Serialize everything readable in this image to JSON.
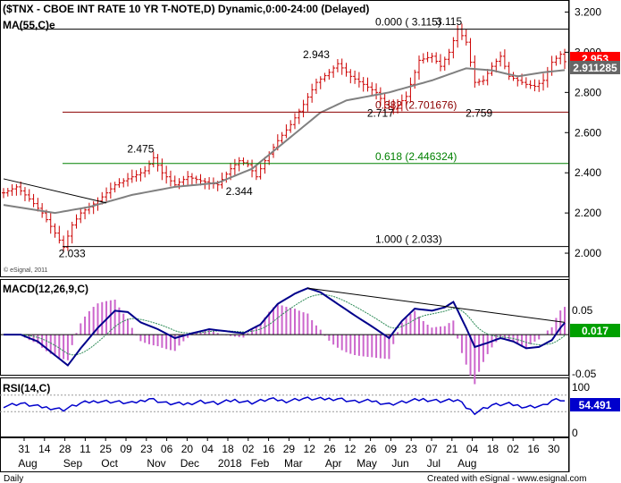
{
  "colors": {
    "price": "#cc0000",
    "ma": "#808080",
    "fib_red": "#8b0000",
    "fib_green": "#008000",
    "macd": "#00008b",
    "signal": "#2e8b57",
    "histogram": "#cc66cc",
    "rsi": "#0000cc",
    "last_price_box": "#ff0000",
    "ma_box": "#666666",
    "macd_box": "#00a000",
    "rsi_box": "#0000cc"
  },
  "chart_data": [
    {
      "type": "line",
      "panel": "price",
      "title": "($TNX - CBOE INT RATE 10 YR T-NOTE,D) Dynamic,0:00-24:00 (Delayed)",
      "ma_label": "MA(55,C)e",
      "watermark": "© eSignal, 2011",
      "ylim": [
        1.88,
        3.26
      ],
      "yticks": [
        "2.000",
        "2.200",
        "2.400",
        "2.600",
        "2.800",
        "3.000",
        "3.200"
      ],
      "last_price": "2.953",
      "ma_value": "2.911285",
      "price_waypoints": [
        [
          0,
          2.3
        ],
        [
          3,
          2.33
        ],
        [
          6,
          2.27
        ],
        [
          9,
          2.2
        ],
        [
          12,
          2.1
        ],
        [
          14,
          2.03
        ],
        [
          16,
          2.14
        ],
        [
          18,
          2.2
        ],
        [
          22,
          2.26
        ],
        [
          26,
          2.34
        ],
        [
          30,
          2.38
        ],
        [
          33,
          2.41
        ],
        [
          35,
          2.475
        ],
        [
          37,
          2.4
        ],
        [
          40,
          2.34
        ],
        [
          43,
          2.38
        ],
        [
          46,
          2.36
        ],
        [
          50,
          2.34
        ],
        [
          53,
          2.42
        ],
        [
          55,
          2.46
        ],
        [
          57,
          2.44
        ],
        [
          59,
          2.38
        ],
        [
          61,
          2.46
        ],
        [
          64,
          2.56
        ],
        [
          67,
          2.64
        ],
        [
          70,
          2.74
        ],
        [
          73,
          2.85
        ],
        [
          76,
          2.9
        ],
        [
          78,
          2.943
        ],
        [
          81,
          2.88
        ],
        [
          84,
          2.84
        ],
        [
          87,
          2.8
        ],
        [
          89,
          2.74
        ],
        [
          91,
          2.717
        ],
        [
          94,
          2.78
        ],
        [
          97,
          2.96
        ],
        [
          100,
          2.98
        ],
        [
          102,
          2.93
        ],
        [
          104,
          3.0
        ],
        [
          106,
          3.115
        ],
        [
          108,
          3.05
        ],
        [
          110,
          2.85
        ],
        [
          112,
          2.86
        ],
        [
          114,
          2.93
        ],
        [
          116,
          2.98
        ],
        [
          118,
          2.88
        ],
        [
          120,
          2.86
        ],
        [
          122,
          2.84
        ],
        [
          124,
          2.83
        ],
        [
          126,
          2.86
        ],
        [
          128,
          2.95
        ],
        [
          130,
          2.99
        ],
        [
          131,
          2.953
        ]
      ],
      "ma_waypoints": [
        [
          0,
          2.24
        ],
        [
          12,
          2.2
        ],
        [
          20,
          2.23
        ],
        [
          30,
          2.29
        ],
        [
          40,
          2.33
        ],
        [
          50,
          2.35
        ],
        [
          58,
          2.42
        ],
        [
          66,
          2.56
        ],
        [
          74,
          2.7
        ],
        [
          80,
          2.76
        ],
        [
          90,
          2.8
        ],
        [
          100,
          2.86
        ],
        [
          108,
          2.92
        ],
        [
          114,
          2.91
        ],
        [
          120,
          2.88
        ],
        [
          126,
          2.9
        ],
        [
          131,
          2.911
        ]
      ],
      "fib_levels": [
        {
          "label": "0.000 ( 3.115)",
          "value": 3.115,
          "color": "#000000"
        },
        {
          "label": "0.382 (2.701676)",
          "value": 2.701676,
          "color": "#8b0000"
        },
        {
          "label": "0.618 (2.446324)",
          "value": 2.446324,
          "color": "#008000"
        },
        {
          "label": "1.000 ( 2.033)",
          "value": 2.033,
          "color": "#000000"
        }
      ],
      "annotations": [
        {
          "text": "3.115",
          "x": 104,
          "y": 3.135
        },
        {
          "text": "2.943",
          "x": 73,
          "y": 2.97
        },
        {
          "text": "2.717",
          "x": 88,
          "y": 2.68
        },
        {
          "text": "2.759",
          "x": 111,
          "y": 2.68
        },
        {
          "text": "2.475",
          "x": 32,
          "y": 2.5
        },
        {
          "text": "2.344",
          "x": 55,
          "y": 2.29
        },
        {
          "text": "2.033",
          "x": 16,
          "y": 1.98
        }
      ],
      "trendline": [
        [
          0,
          2.37
        ],
        [
          24,
          2.25
        ]
      ]
    },
    {
      "type": "line",
      "panel": "macd",
      "title": "MACD(12,26,9,C)",
      "ylim": [
        -0.06,
        0.08
      ],
      "yticks": [
        "0.05",
        "-0.05"
      ],
      "last_value": "0.017",
      "macd_waypoints": [
        [
          0,
          0.0
        ],
        [
          4,
          0.0
        ],
        [
          8,
          -0.01
        ],
        [
          12,
          -0.03
        ],
        [
          15,
          -0.045
        ],
        [
          18,
          -0.02
        ],
        [
          22,
          0.01
        ],
        [
          26,
          0.035
        ],
        [
          29,
          0.033
        ],
        [
          32,
          0.018
        ],
        [
          36,
          0.008
        ],
        [
          40,
          -0.005
        ],
        [
          44,
          0.002
        ],
        [
          48,
          0.008
        ],
        [
          52,
          0.005
        ],
        [
          56,
          0.002
        ],
        [
          60,
          0.015
        ],
        [
          64,
          0.045
        ],
        [
          68,
          0.06
        ],
        [
          71,
          0.068
        ],
        [
          74,
          0.062
        ],
        [
          78,
          0.045
        ],
        [
          82,
          0.028
        ],
        [
          86,
          0.012
        ],
        [
          90,
          -0.005
        ],
        [
          93,
          0.02
        ],
        [
          96,
          0.038
        ],
        [
          100,
          0.035
        ],
        [
          103,
          0.04
        ],
        [
          105,
          0.048
        ],
        [
          108,
          0.01
        ],
        [
          110,
          -0.018
        ],
        [
          113,
          -0.012
        ],
        [
          116,
          -0.005
        ],
        [
          119,
          -0.01
        ],
        [
          122,
          -0.02
        ],
        [
          125,
          -0.018
        ],
        [
          128,
          -0.008
        ],
        [
          130,
          0.01
        ],
        [
          131,
          0.017
        ]
      ],
      "trendline": [
        [
          71,
          0.068
        ],
        [
          131,
          0.018
        ]
      ]
    },
    {
      "type": "line",
      "panel": "rsi",
      "title": "RSI(14,C)",
      "ylim": [
        0,
        100
      ],
      "yticks": [
        "100",
        "0"
      ],
      "last_value": "54.491",
      "rsi_waypoints": [
        [
          0,
          44
        ],
        [
          4,
          50
        ],
        [
          8,
          42
        ],
        [
          12,
          38
        ],
        [
          14,
          35
        ],
        [
          18,
          50
        ],
        [
          22,
          56
        ],
        [
          26,
          54
        ],
        [
          30,
          50
        ],
        [
          34,
          62
        ],
        [
          38,
          50
        ],
        [
          42,
          48
        ],
        [
          46,
          55
        ],
        [
          50,
          50
        ],
        [
          54,
          58
        ],
        [
          58,
          52
        ],
        [
          62,
          60
        ],
        [
          66,
          56
        ],
        [
          70,
          62
        ],
        [
          74,
          60
        ],
        [
          78,
          62
        ],
        [
          82,
          54
        ],
        [
          86,
          56
        ],
        [
          90,
          48
        ],
        [
          94,
          54
        ],
        [
          98,
          60
        ],
        [
          102,
          56
        ],
        [
          106,
          58
        ],
        [
          108,
          40
        ],
        [
          110,
          28
        ],
        [
          114,
          46
        ],
        [
          118,
          48
        ],
        [
          122,
          42
        ],
        [
          126,
          44
        ],
        [
          128,
          56
        ],
        [
          130,
          58
        ],
        [
          131,
          54.5
        ]
      ]
    }
  ],
  "x_axis": {
    "day_labels": [
      "31",
      "14",
      "28",
      "11",
      "25",
      "09",
      "23",
      "06",
      "20",
      "04",
      "18",
      "02",
      "16",
      "29",
      "12",
      "26",
      "12",
      "26",
      "09",
      "23",
      "07",
      "21",
      "04",
      "18",
      "02",
      "16",
      "30"
    ],
    "month_labels": [
      {
        "label": "Aug",
        "at": 1.5
      },
      {
        "label": "Sep",
        "at": 15
      },
      {
        "label": "Oct",
        "at": 26
      },
      {
        "label": "Nov",
        "at": 40
      },
      {
        "label": "Dec",
        "at": 50
      },
      {
        "label": "2018",
        "at": 62
      },
      {
        "label": "Feb",
        "at": 71
      },
      {
        "label": "Mar",
        "at": 81
      },
      {
        "label": "Apr",
        "at": 93
      },
      {
        "label": "May",
        "at": 103
      },
      {
        "label": "Jun",
        "at": 113
      },
      {
        "label": "Jul",
        "at": 123
      },
      {
        "label": "Aug",
        "at": 133
      }
    ]
  },
  "footer": {
    "left": "Daily",
    "right": "Created with eSignal - www.esignal.com"
  }
}
